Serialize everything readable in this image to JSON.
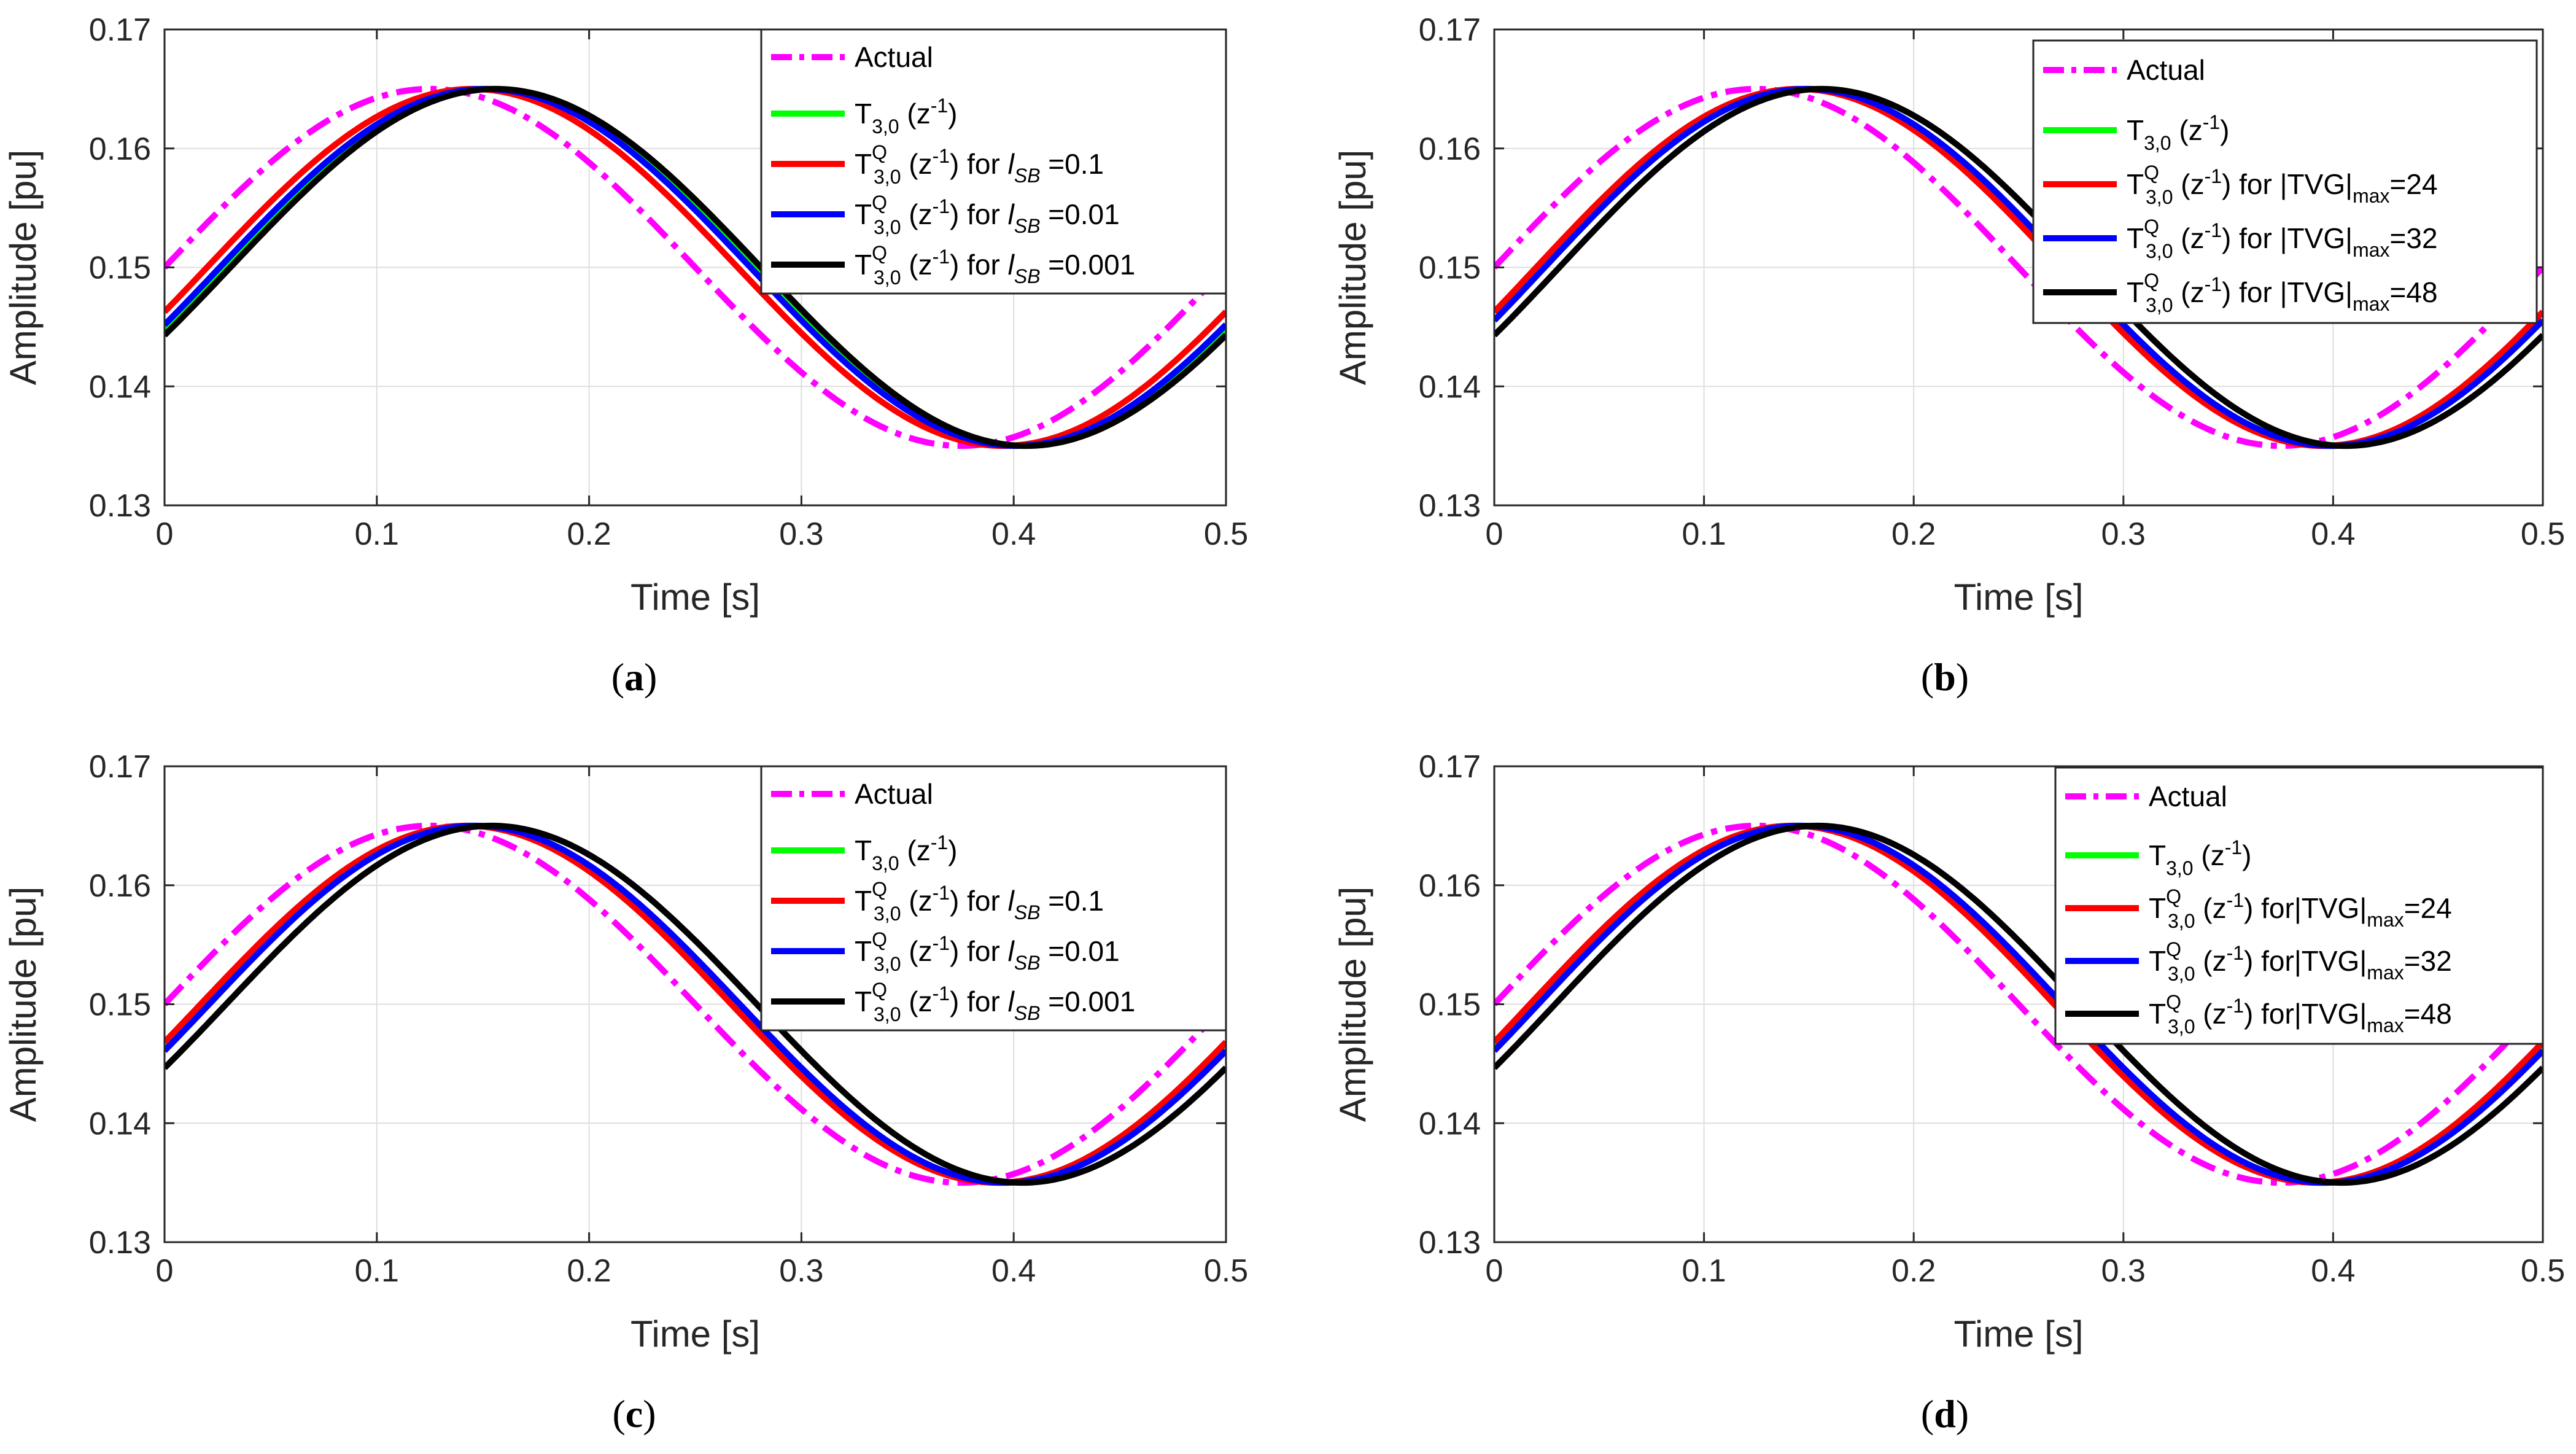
{
  "chart_data": [
    {
      "panel": "a",
      "type": "line",
      "caption": {
        "open": "(",
        "letter": "a",
        "close": ")"
      },
      "xlabel": "Time [s]",
      "ylabel": "Amplitude [pu]",
      "xlim": [
        0,
        0.5
      ],
      "ylim": [
        0.13,
        0.17
      ],
      "xticks": [
        0,
        0.1,
        0.2,
        0.3,
        0.4,
        0.5
      ],
      "xtick_labels": [
        "0",
        "0.1",
        "0.2",
        "0.3",
        "0.4",
        "0.5"
      ],
      "yticks": [
        0.13,
        0.14,
        0.15,
        0.16,
        0.17
      ],
      "ytick_labels": [
        "0.13",
        "0.14",
        "0.15",
        "0.16",
        "0.17"
      ],
      "grid": true,
      "legend_position": "top-right",
      "signal": {
        "offset": 0.15,
        "amplitude": 0.015,
        "frequency_hz": 2,
        "t_start": 0,
        "t_end": 0.5
      },
      "series": [
        {
          "name": "Actual",
          "color": "#ff00ff",
          "style": "dashdot",
          "delay_s": 0.0,
          "label": {
            "main": "Actual",
            "sub": "",
            "sup": "",
            "arg": "",
            "rest": "",
            "var": "",
            "var_sub": "",
            "eq": "",
            "tail_sub": "",
            "tail": ""
          }
        },
        {
          "name": "T3,0 (z-1)",
          "color": "#00ff00",
          "style": "solid",
          "delay_s": 0.029,
          "label": {
            "main": "T",
            "sub": "3,0",
            "sup": "",
            "arg": " (z",
            "arg_sup": "-1",
            "rest": ")",
            "var": "",
            "var_sub": "",
            "eq": "",
            "tail_sub": "",
            "tail": ""
          }
        },
        {
          "name": "T3,0Q (z-1) for lSB=0.1",
          "color": "#ff0000",
          "style": "solid",
          "delay_s": 0.02,
          "label": {
            "main": "T",
            "sub": "3,0",
            "sup": "Q",
            "arg": " (z",
            "arg_sup": "-1",
            "rest": ") for ",
            "var": "l",
            "var_sub": "SB",
            "eq": " =0.1",
            "tail_sub": "",
            "tail": ""
          }
        },
        {
          "name": "T3,0Q (z-1) for lSB=0.01",
          "color": "#0000ff",
          "style": "solid",
          "delay_s": 0.026,
          "label": {
            "main": "T",
            "sub": "3,0",
            "sup": "Q",
            "arg": " (z",
            "arg_sup": "-1",
            "rest": ") for ",
            "var": "l",
            "var_sub": "SB",
            "eq": " =0.01",
            "tail_sub": "",
            "tail": ""
          }
        },
        {
          "name": "T3,0Q (z-1) for lSB=0.001",
          "color": "#000000",
          "style": "solid",
          "delay_s": 0.031,
          "label": {
            "main": "T",
            "sub": "3,0",
            "sup": "Q",
            "arg": " (z",
            "arg_sup": "-1",
            "rest": ") for ",
            "var": "l",
            "var_sub": "SB",
            "eq": " =0.001",
            "tail_sub": "",
            "tail": ""
          }
        }
      ]
    },
    {
      "panel": "b",
      "type": "line",
      "caption": {
        "open": "(",
        "letter": "b",
        "close": ")"
      },
      "xlabel": "Time [s]",
      "ylabel": "Amplitude [pu]",
      "xlim": [
        0,
        0.5
      ],
      "ylim": [
        0.13,
        0.17
      ],
      "xticks": [
        0,
        0.1,
        0.2,
        0.3,
        0.4,
        0.5
      ],
      "xtick_labels": [
        "0",
        "0.1",
        "0.2",
        "0.3",
        "0.4",
        "0.5"
      ],
      "yticks": [
        0.13,
        0.14,
        0.15,
        0.16,
        0.17
      ],
      "ytick_labels": [
        "0.13",
        "0.14",
        "0.15",
        "0.16",
        "0.17"
      ],
      "grid": true,
      "legend_position": "top-right",
      "signal": {
        "offset": 0.15,
        "amplitude": 0.015,
        "frequency_hz": 2,
        "t_start": 0,
        "t_end": 0.5
      },
      "series": [
        {
          "name": "Actual",
          "color": "#ff00ff",
          "style": "dashdot",
          "delay_s": 0.0,
          "label": {
            "main": "Actual",
            "sub": "",
            "sup": "",
            "arg": "",
            "rest": "",
            "var": "",
            "var_sub": "",
            "eq": "",
            "tail_sub": "",
            "tail": ""
          }
        },
        {
          "name": "T3,0 (z-1)",
          "color": "#00ff00",
          "style": "solid",
          "delay_s": 0.024,
          "label": {
            "main": "T",
            "sub": "3,0",
            "sup": "",
            "arg": " (z",
            "arg_sup": "-1",
            "rest": ")",
            "var": "",
            "var_sub": "",
            "eq": "",
            "tail_sub": "",
            "tail": ""
          }
        },
        {
          "name": "T3,0Q (z-1) for |TVG|max=24",
          "color": "#ff0000",
          "style": "solid",
          "delay_s": 0.02,
          "label": {
            "main": "T",
            "sub": "3,0",
            "sup": "Q",
            "arg": " (z",
            "arg_sup": "-1",
            "rest": ") for |TVG|",
            "var": "",
            "var_sub": "",
            "eq": "",
            "tail_sub": "max",
            "tail": "=24"
          }
        },
        {
          "name": "T3,0Q (z-1) for |TVG|max=32",
          "color": "#0000ff",
          "style": "solid",
          "delay_s": 0.024,
          "label": {
            "main": "T",
            "sub": "3,0",
            "sup": "Q",
            "arg": " (z",
            "arg_sup": "-1",
            "rest": ") for |TVG|",
            "var": "",
            "var_sub": "",
            "eq": "",
            "tail_sub": "max",
            "tail": "=32"
          }
        },
        {
          "name": "T3,0Q (z-1) for |TVG|max=48",
          "color": "#000000",
          "style": "solid",
          "delay_s": 0.031,
          "label": {
            "main": "T",
            "sub": "3,0",
            "sup": "Q",
            "arg": " (z",
            "arg_sup": "-1",
            "rest": ") for |TVG|",
            "var": "",
            "var_sub": "",
            "eq": "",
            "tail_sub": "max",
            "tail": "=48"
          }
        }
      ]
    },
    {
      "panel": "c",
      "type": "line",
      "caption": {
        "open": "(",
        "letter": "c",
        "close": ")"
      },
      "xlabel": "Time [s]",
      "ylabel": "Amplitude [pu]",
      "xlim": [
        0,
        0.5
      ],
      "ylim": [
        0.13,
        0.17
      ],
      "xticks": [
        0,
        0.1,
        0.2,
        0.3,
        0.4,
        0.5
      ],
      "xtick_labels": [
        "0",
        "0.1",
        "0.2",
        "0.3",
        "0.4",
        "0.5"
      ],
      "yticks": [
        0.13,
        0.14,
        0.15,
        0.16,
        0.17
      ],
      "ytick_labels": [
        "0.13",
        "0.14",
        "0.15",
        "0.16",
        "0.17"
      ],
      "grid": true,
      "legend_position": "top-right",
      "signal": {
        "offset": 0.15,
        "amplitude": 0.015,
        "frequency_hz": 2,
        "t_start": 0,
        "t_end": 0.5
      },
      "series": [
        {
          "name": "Actual",
          "color": "#ff00ff",
          "style": "dashdot",
          "delay_s": 0.0,
          "label": {
            "main": "Actual",
            "sub": "",
            "sup": "",
            "arg": "",
            "rest": "",
            "var": "",
            "var_sub": "",
            "eq": "",
            "tail_sub": "",
            "tail": ""
          }
        },
        {
          "name": "T3,0 (z-1)",
          "color": "#00ff00",
          "style": "solid",
          "delay_s": 0.02,
          "label": {
            "main": "T",
            "sub": "3,0",
            "sup": "",
            "arg": " (z",
            "arg_sup": "-1",
            "rest": ")",
            "var": "",
            "var_sub": "",
            "eq": "",
            "tail_sub": "",
            "tail": ""
          }
        },
        {
          "name": "T3,0Q (z-1) for lSB=0.1",
          "color": "#ff0000",
          "style": "solid",
          "delay_s": 0.017,
          "label": {
            "main": "T",
            "sub": "3,0",
            "sup": "Q",
            "arg": " (z",
            "arg_sup": "-1",
            "rest": ") for ",
            "var": "l",
            "var_sub": "SB",
            "eq": " =0.1",
            "tail_sub": "",
            "tail": ""
          }
        },
        {
          "name": "T3,0Q (z-1) for lSB=0.01",
          "color": "#0000ff",
          "style": "solid",
          "delay_s": 0.021,
          "label": {
            "main": "T",
            "sub": "3,0",
            "sup": "Q",
            "arg": " (z",
            "arg_sup": "-1",
            "rest": ") for ",
            "var": "l",
            "var_sub": "SB",
            "eq": " =0.01",
            "tail_sub": "",
            "tail": ""
          }
        },
        {
          "name": "T3,0Q (z-1) for lSB=0.001",
          "color": "#000000",
          "style": "solid",
          "delay_s": 0.029,
          "label": {
            "main": "T",
            "sub": "3,0",
            "sup": "Q",
            "arg": " (z",
            "arg_sup": "-1",
            "rest": ") for ",
            "var": "l",
            "var_sub": "SB",
            "eq": " =0.001",
            "tail_sub": "",
            "tail": ""
          }
        }
      ]
    },
    {
      "panel": "d",
      "type": "line",
      "caption": {
        "open": "(",
        "letter": "d",
        "close": ")"
      },
      "xlabel": "Time [s]",
      "ylabel": "Amplitude [pu]",
      "xlim": [
        0,
        0.5
      ],
      "ylim": [
        0.13,
        0.17
      ],
      "xticks": [
        0,
        0.1,
        0.2,
        0.3,
        0.4,
        0.5
      ],
      "xtick_labels": [
        "0",
        "0.1",
        "0.2",
        "0.3",
        "0.4",
        "0.5"
      ],
      "yticks": [
        0.13,
        0.14,
        0.15,
        0.16,
        0.17
      ],
      "ytick_labels": [
        "0.13",
        "0.14",
        "0.15",
        "0.16",
        "0.17"
      ],
      "grid": true,
      "legend_position": "top-right",
      "signal": {
        "offset": 0.15,
        "amplitude": 0.015,
        "frequency_hz": 2,
        "t_start": 0,
        "t_end": 0.5
      },
      "series": [
        {
          "name": "Actual",
          "color": "#ff00ff",
          "style": "dashdot",
          "delay_s": 0.0,
          "label": {
            "main": "Actual",
            "sub": "",
            "sup": "",
            "arg": "",
            "rest": "",
            "var": "",
            "var_sub": "",
            "eq": "",
            "tail_sub": "",
            "tail": ""
          }
        },
        {
          "name": "T3,0 (z-1)",
          "color": "#00ff00",
          "style": "solid",
          "delay_s": 0.02,
          "label": {
            "main": "T",
            "sub": "3,0",
            "sup": "",
            "arg": " (z",
            "arg_sup": "-1",
            "rest": ")",
            "var": "",
            "var_sub": "",
            "eq": "",
            "tail_sub": "",
            "tail": ""
          }
        },
        {
          "name": "T3,0Q (z-1) for|TVG|max=24",
          "color": "#ff0000",
          "style": "solid",
          "delay_s": 0.017,
          "label": {
            "main": "T",
            "sub": "3,0",
            "sup": "Q",
            "arg": " (z",
            "arg_sup": "-1",
            "rest": ") for|TVG|",
            "var": "",
            "var_sub": "",
            "eq": "",
            "tail_sub": "max",
            "tail": "=24"
          }
        },
        {
          "name": "T3,0Q (z-1) for|TVG|max=32",
          "color": "#0000ff",
          "style": "solid",
          "delay_s": 0.021,
          "label": {
            "main": "T",
            "sub": "3,0",
            "sup": "Q",
            "arg": " (z",
            "arg_sup": "-1",
            "rest": ") for|TVG|",
            "var": "",
            "var_sub": "",
            "eq": "",
            "tail_sub": "max",
            "tail": "=32"
          }
        },
        {
          "name": "T3,0Q (z-1) for|TVG|max=48",
          "color": "#000000",
          "style": "solid",
          "delay_s": 0.029,
          "label": {
            "main": "T",
            "sub": "3,0",
            "sup": "Q",
            "arg": " (z",
            "arg_sup": "-1",
            "rest": ") for|TVG|",
            "var": "",
            "var_sub": "",
            "eq": "",
            "tail_sub": "max",
            "tail": "=48"
          }
        }
      ]
    }
  ]
}
